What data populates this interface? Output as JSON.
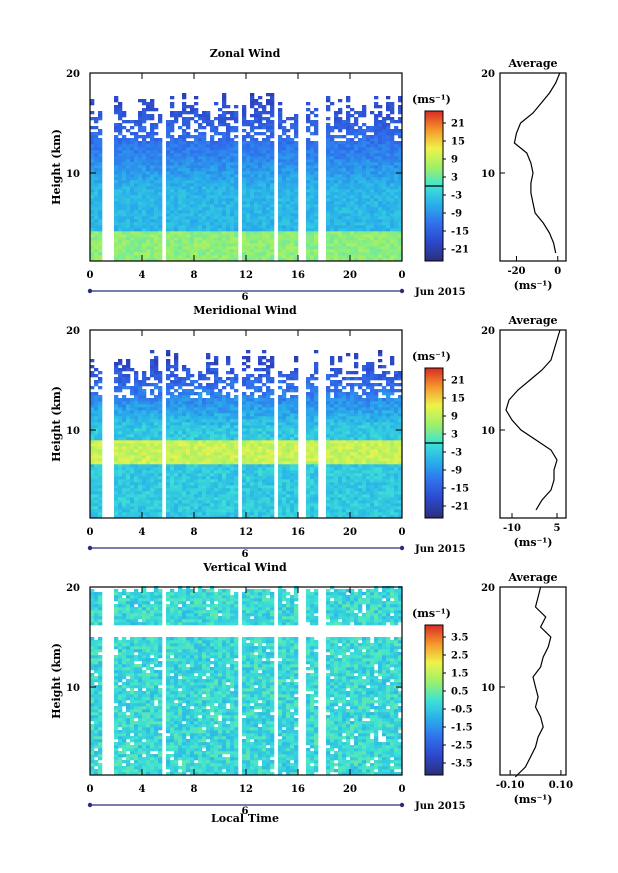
{
  "figure": {
    "xlabel": "Local Time",
    "date_label": "Jun 2015",
    "day_label": "6"
  },
  "chart_data": [
    {
      "type": "heatmap",
      "title": "Zonal Wind",
      "ylabel": "Height (km)",
      "xticks": [
        "0",
        "4",
        "8",
        "12",
        "16",
        "20",
        "0"
      ],
      "yticks": [
        "20",
        "10"
      ],
      "units": "(ms⁻¹)",
      "colorbar_ticks": [
        "21",
        "15",
        "9",
        "3",
        "-3",
        "-9",
        "-15",
        "-21"
      ],
      "colorbar_range": [
        -24,
        24
      ],
      "base_value": -5,
      "top_value": -12,
      "contour_at": 0,
      "average": {
        "title": "Average",
        "xticks": [
          "-20",
          "0"
        ],
        "xlim": [
          -28,
          4
        ],
        "profile_heights": [
          2,
          3,
          4,
          5,
          6,
          7,
          8,
          9,
          10,
          11,
          12,
          13,
          14,
          15,
          16,
          17,
          18,
          19,
          20
        ],
        "profile_values": [
          -1,
          -2,
          -4,
          -7,
          -11,
          -12,
          -13,
          -13,
          -12,
          -13,
          -15,
          -21,
          -20,
          -18,
          -12,
          -8,
          -4,
          -1,
          1
        ]
      }
    },
    {
      "type": "heatmap",
      "title": "Meridional Wind",
      "ylabel": "Height (km)",
      "xticks": [
        "0",
        "4",
        "8",
        "12",
        "16",
        "20",
        "0"
      ],
      "yticks": [
        "20",
        "10"
      ],
      "units": "(ms⁻¹)",
      "colorbar_ticks": [
        "21",
        "15",
        "9",
        "3",
        "-3",
        "-9",
        "-15",
        "-21"
      ],
      "colorbar_range": [
        -24,
        24
      ],
      "base_value": -3,
      "top_value": -14,
      "contour_at": 0,
      "average": {
        "title": "Average",
        "xticks": [
          "-10",
          "5"
        ],
        "xlim": [
          -14,
          8
        ],
        "profile_heights": [
          2,
          3,
          4,
          5,
          6,
          7,
          8,
          9,
          10,
          11,
          12,
          13,
          14,
          15,
          16,
          17,
          18,
          19,
          20
        ],
        "profile_values": [
          -2,
          0,
          3,
          4,
          4,
          5,
          3,
          -2,
          -7,
          -10,
          -12,
          -11,
          -8,
          -4,
          0,
          3,
          4,
          5,
          6
        ]
      }
    },
    {
      "type": "heatmap",
      "title": "Vertical Wind",
      "ylabel": "Height (km)",
      "xticks": [
        "0",
        "4",
        "8",
        "12",
        "16",
        "20",
        "0"
      ],
      "yticks": [
        "20",
        "10"
      ],
      "units": "(ms⁻¹)",
      "colorbar_ticks": [
        "3.5",
        "2.5",
        "1.5",
        "0.5",
        "-0.5",
        "-1.5",
        "-2.5",
        "-3.5"
      ],
      "colorbar_range": [
        -4,
        4
      ],
      "base_value": -0.2,
      "top_value": -0.2,
      "contour_at": null,
      "average": {
        "title": "Average",
        "xticks": [
          "-0.10",
          "0.10"
        ],
        "xlim": [
          -0.14,
          0.12
        ],
        "profile_heights": [
          1,
          2,
          3,
          4,
          5,
          6,
          7,
          8,
          9,
          10,
          11,
          12,
          13,
          14,
          15,
          16,
          17,
          18,
          19,
          20
        ],
        "profile_values": [
          -0.08,
          -0.04,
          -0.02,
          0.0,
          0.01,
          0.03,
          0.02,
          0.0,
          0.01,
          0.0,
          -0.01,
          0.02,
          0.03,
          0.05,
          0.06,
          0.02,
          0.04,
          0.0,
          0.01,
          0.02
        ]
      }
    }
  ]
}
